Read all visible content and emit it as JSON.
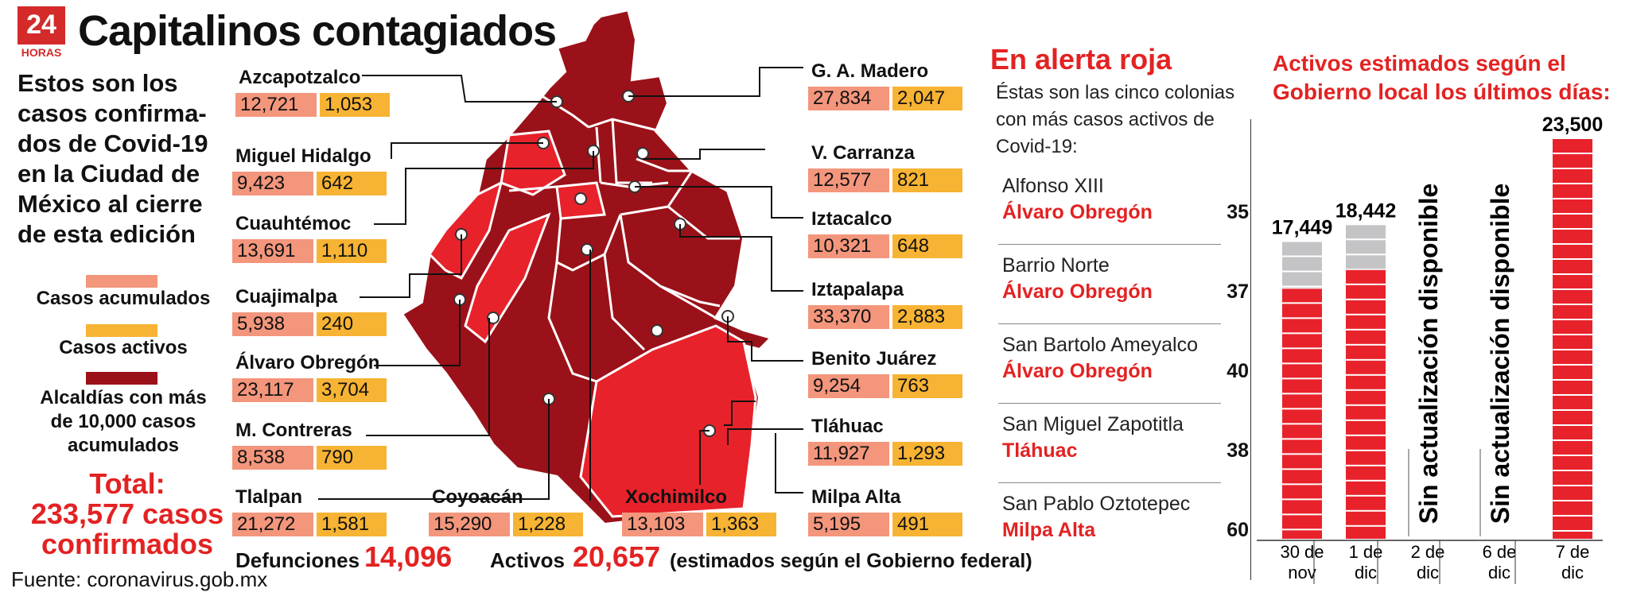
{
  "header": {
    "logo_number": "24",
    "logo_text": "HORAS",
    "title": "Capitalinos contagiados"
  },
  "intro_lines": [
    "Estos son los",
    "casos confirma-",
    "dos de Covid-19",
    "en la Ciudad de",
    "México al cierre",
    "de esta edición"
  ],
  "legend": {
    "accumulated": "Casos acumulados",
    "active": "Casos activos",
    "alcaldias": [
      "Alcaldías con más",
      "de 10,000 casos",
      "acumulados"
    ],
    "colors": {
      "accumulated": "#f3967c",
      "active": "#f7b333",
      "alcaldias": "#9b1119"
    }
  },
  "total": {
    "line1": "Total:",
    "line2": "233,577 casos",
    "line3": "confirmados"
  },
  "source": "Fuente: coronavirus.gob.mx",
  "chart_data": [
    {
      "type": "table",
      "columns": [
        "Alcaldía",
        "Casos acumulados",
        "Casos activos"
      ],
      "rows": [
        {
          "name": "Azcapotzalco",
          "acumulados": "12,721",
          "activos": "1,053"
        },
        {
          "name": "Miguel Hidalgo",
          "acumulados": "9,423",
          "activos": "642"
        },
        {
          "name": "Cuauhtémoc",
          "acumulados": "13,691",
          "activos": "1,110"
        },
        {
          "name": "Cuajimalpa",
          "acumulados": "5,938",
          "activos": "240"
        },
        {
          "name": "Álvaro Obregón",
          "acumulados": "23,117",
          "activos": "3,704"
        },
        {
          "name": "M. Contreras",
          "acumulados": "8,538",
          "activos": "790"
        },
        {
          "name": "Tlalpan",
          "acumulados": "21,272",
          "activos": "1,581"
        },
        {
          "name": "Coyoacán",
          "acumulados": "15,290",
          "activos": "1,228"
        },
        {
          "name": "Xochimilco",
          "acumulados": "13,103",
          "activos": "1,363"
        },
        {
          "name": "G. A. Madero",
          "acumulados": "27,834",
          "activos": "2,047"
        },
        {
          "name": "V. Carranza",
          "acumulados": "12,577",
          "activos": "821"
        },
        {
          "name": "Iztacalco",
          "acumulados": "10,321",
          "activos": "648"
        },
        {
          "name": "Iztapalapa",
          "acumulados": "33,370",
          "activos": "2,883"
        },
        {
          "name": "Benito Juárez",
          "acumulados": "9,254",
          "activos": "763"
        },
        {
          "name": "Tláhuac",
          "acumulados": "11,927",
          "activos": "1,293"
        },
        {
          "name": "Milpa Alta",
          "acumulados": "5,195",
          "activos": "491"
        }
      ]
    },
    {
      "type": "table",
      "title": "En alerta roja",
      "intro": "Éstas son las cinco colonias con más casos activos de Covid-19:",
      "rows": [
        {
          "colonia": "Alfonso XIII",
          "alcaldia": "Álvaro Obregón",
          "value": 35
        },
        {
          "colonia": "Barrio Norte",
          "alcaldia": "Álvaro Obregón",
          "value": 37
        },
        {
          "colonia": "San Bartolo Ameyalco",
          "alcaldia": "Álvaro Obregón",
          "value": 40
        },
        {
          "colonia": "San Miguel Zapotitla",
          "alcaldia": "Tláhuac",
          "value": 38
        },
        {
          "colonia": "San Pablo Oztotepec",
          "alcaldia": "Milpa Alta",
          "value": 60
        }
      ]
    },
    {
      "type": "bar",
      "title": "Activos estimados según el Gobierno local los últimos días:",
      "categories": [
        [
          "30 de",
          "nov"
        ],
        [
          "1 de",
          "dic"
        ],
        [
          "2 de",
          "dic"
        ],
        [
          "6 de",
          "dic"
        ],
        [
          "7 de",
          "dic"
        ]
      ],
      "values": [
        17449,
        18442,
        null,
        null,
        23500
      ],
      "value_labels": [
        "17,449",
        "18,442",
        "",
        "",
        "23,500"
      ],
      "red_portion": [
        14700,
        15800,
        null,
        null,
        23500
      ],
      "no_data_label": "Sin actualización disponible",
      "ylim": [
        0,
        23500
      ],
      "colors": {
        "red": "#e8222b",
        "gray": "#c4c4c6"
      }
    }
  ],
  "footer": {
    "deaths_label": "Defunciones",
    "deaths_value": "14,096",
    "active_label": "Activos",
    "active_value": "20,657",
    "active_note": "(estimados según el Gobierno federal)"
  },
  "map_colors": {
    "dark": "#9b1119",
    "mid": "#c2161f",
    "light": "#e8222b"
  }
}
